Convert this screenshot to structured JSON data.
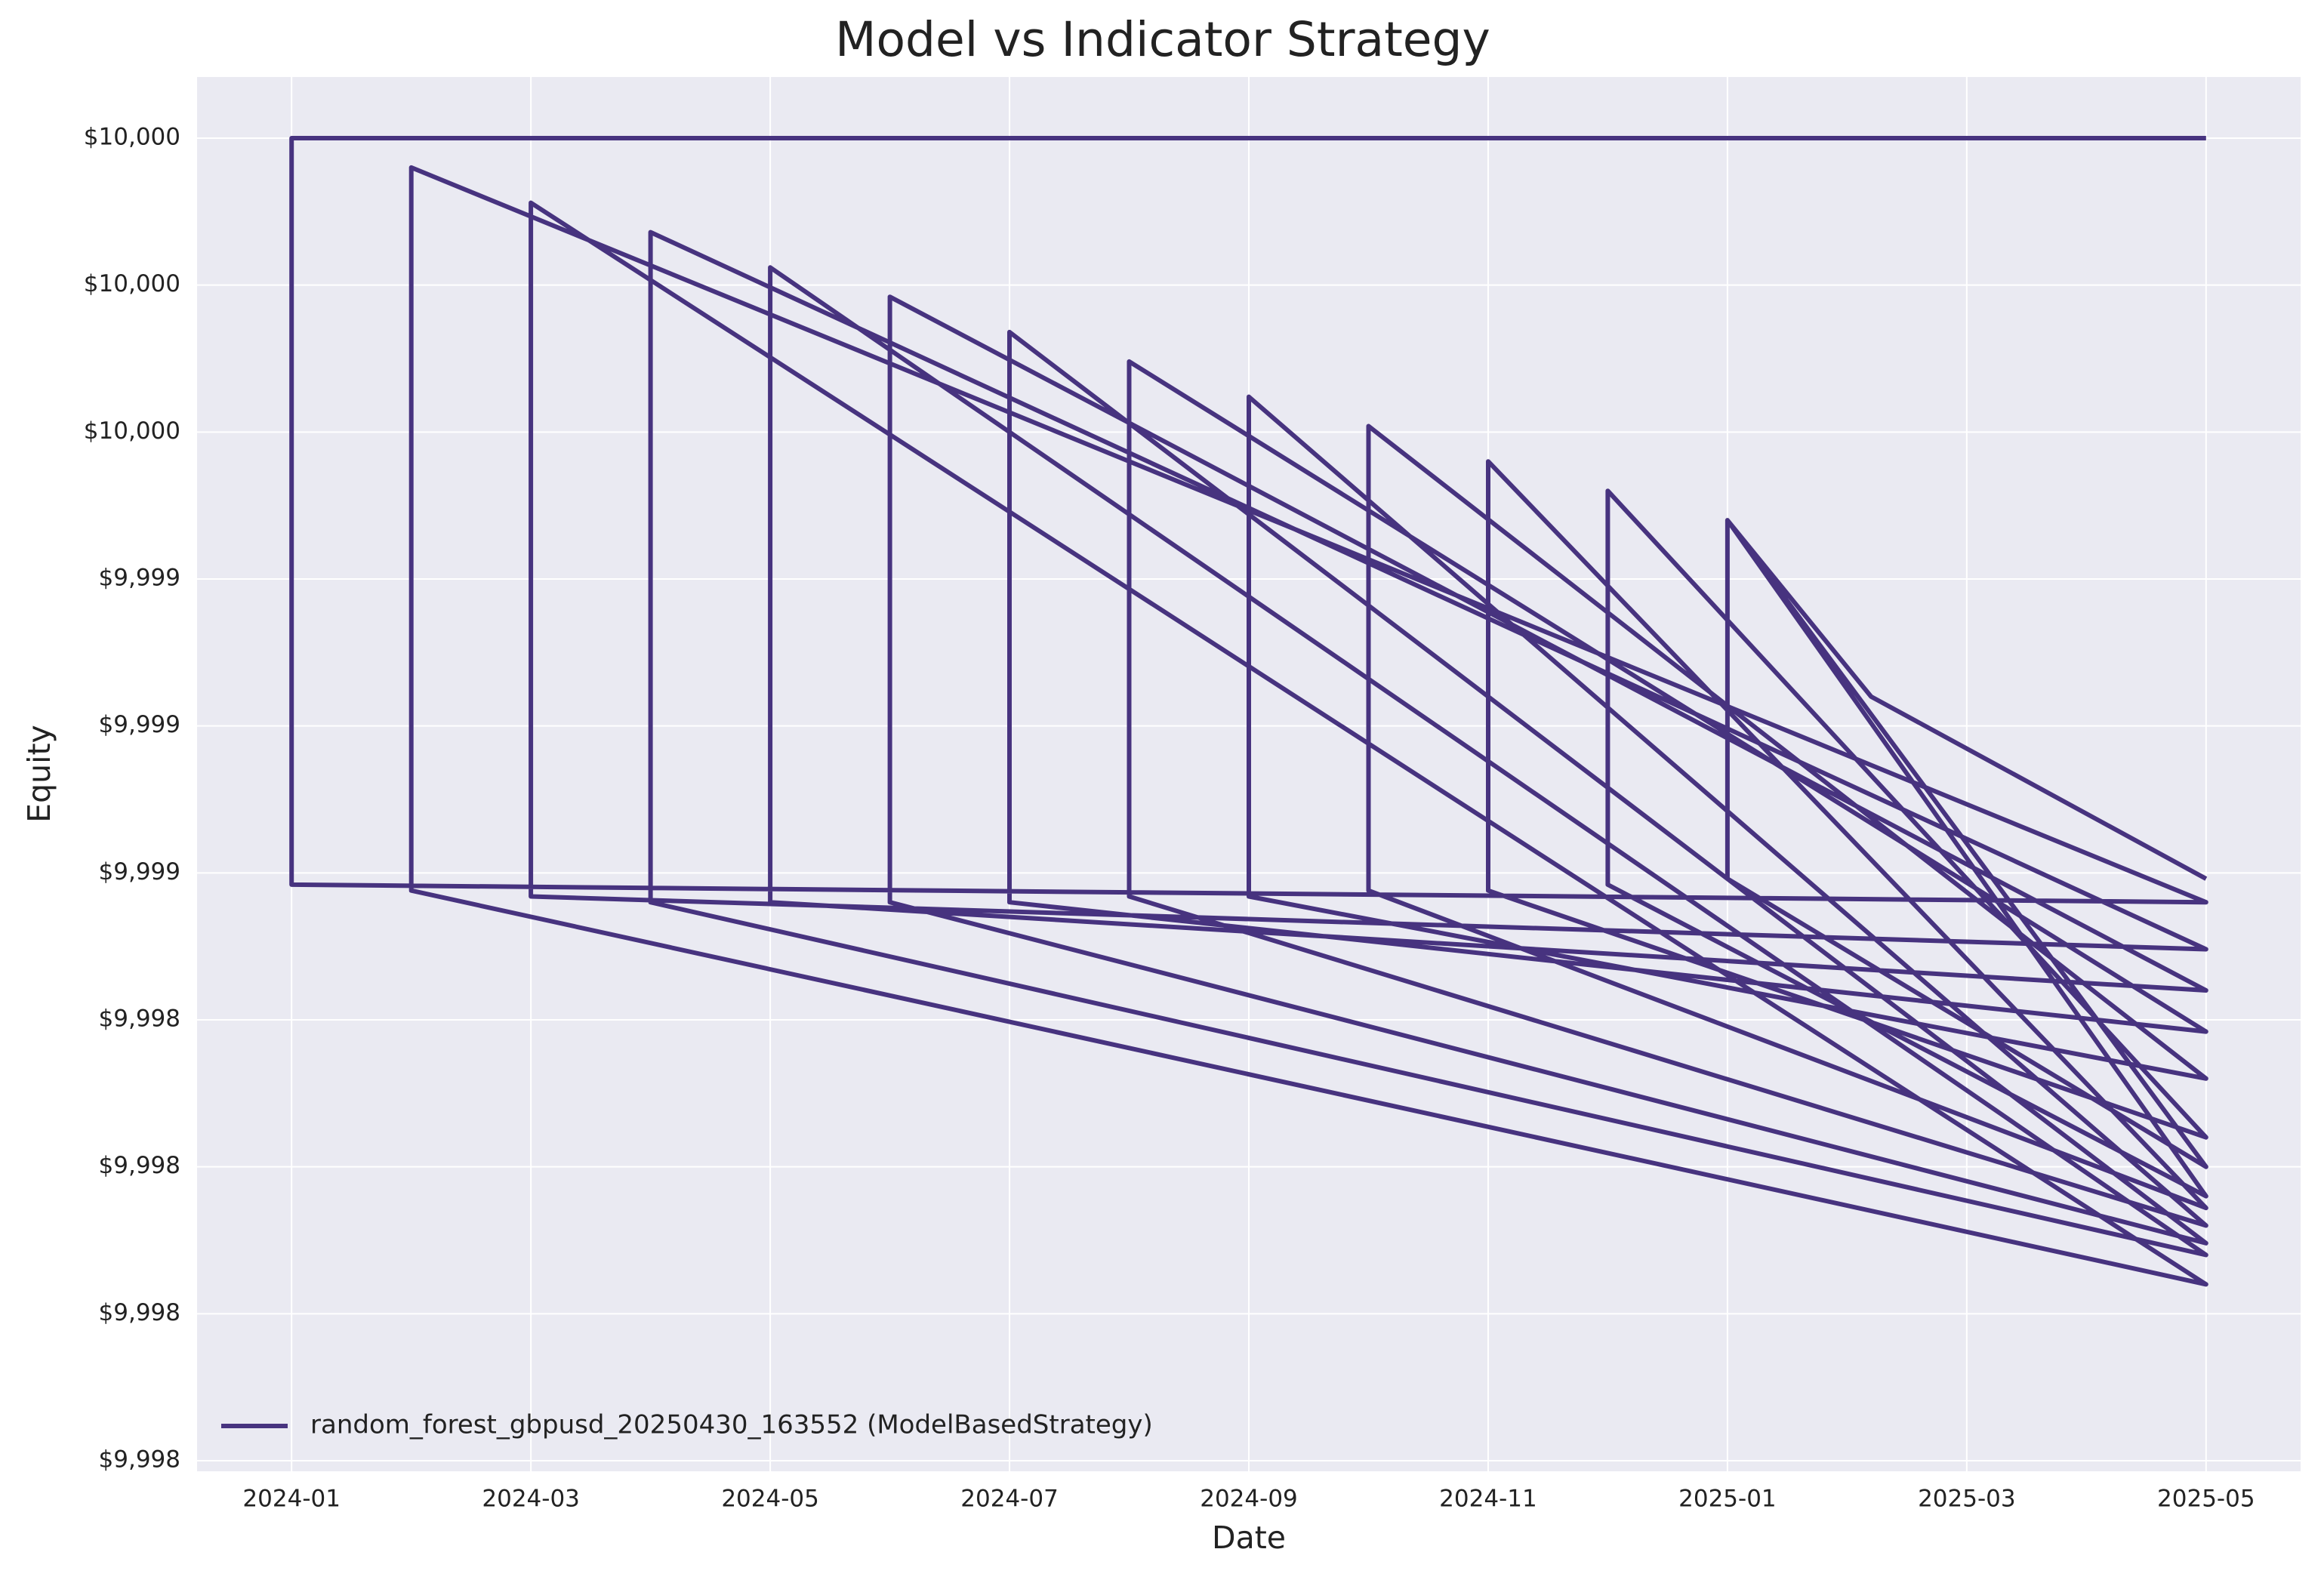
{
  "chart_data": {
    "type": "line",
    "title": "Model vs Indicator Strategy",
    "x_label": "Date",
    "y_label": "Equity",
    "xlim": [
      -0.79,
      16.79
    ],
    "xticks": [
      {
        "value": 0,
        "label": "2024-01"
      },
      {
        "value": 2,
        "label": "2024-03"
      },
      {
        "value": 4,
        "label": "2024-05"
      },
      {
        "value": 6,
        "label": "2024-07"
      },
      {
        "value": 8,
        "label": "2024-09"
      },
      {
        "value": 10,
        "label": "2024-11"
      },
      {
        "value": 12,
        "label": "2025-01"
      },
      {
        "value": 14,
        "label": "2025-03"
      },
      {
        "value": 16,
        "label": "2025-05"
      }
    ],
    "ylim": [
      9997.732,
      10000.104
    ],
    "yticks": [
      {
        "value": 9997.75,
        "label": "$9,998"
      },
      {
        "value": 9998.0,
        "label": "$9,998"
      },
      {
        "value": 9998.25,
        "label": "$9,998"
      },
      {
        "value": 9998.5,
        "label": "$9,998"
      },
      {
        "value": 9998.75,
        "label": "$9,999"
      },
      {
        "value": 9999.0,
        "label": "$9,999"
      },
      {
        "value": 9999.25,
        "label": "$9,999"
      },
      {
        "value": 9999.5,
        "label": "$10,000"
      },
      {
        "value": 9999.75,
        "label": "$10,000"
      },
      {
        "value": 10000.0,
        "label": "$10,000"
      }
    ],
    "grid": true,
    "legend": "lower left",
    "series": [
      {
        "name": "random_forest_gbpusd_20250430_163552 (ModelBasedStrategy)",
        "color": "#47337f",
        "x": [
          16.0,
          0.0,
          0.0,
          16.0,
          1.0,
          1.0,
          16.0,
          2.0,
          2.0,
          16.0,
          3.0,
          3.0,
          16.0,
          4.0,
          4.0,
          16.0,
          5.0,
          5.0,
          16.0,
          6.0,
          6.0,
          16.0,
          7.0,
          7.0,
          16.0,
          8.0,
          8.0,
          16.0,
          9.0,
          9.0,
          16.0,
          10.0,
          10.0,
          16.0,
          11.0,
          11.0,
          16.0,
          12.0,
          12.0,
          16.0,
          12.0,
          13.2,
          16.0
        ],
        "values": [
          10000.0,
          10000.0,
          9998.73,
          9998.7,
          9999.95,
          9998.72,
          9998.05,
          9999.89,
          9998.71,
          9998.62,
          9999.84,
          9998.7,
          9998.1,
          9999.78,
          9998.7,
          9998.55,
          9999.73,
          9998.7,
          9998.12,
          9999.67,
          9998.7,
          9998.48,
          9999.62,
          9998.71,
          9998.15,
          9999.56,
          9998.71,
          9998.4,
          9999.51,
          9998.72,
          9998.18,
          9999.45,
          9998.72,
          9998.3,
          9999.4,
          9998.73,
          9998.2,
          9999.35,
          9998.74,
          9998.25,
          9999.35,
          9999.05,
          9998.74
        ]
      }
    ]
  }
}
